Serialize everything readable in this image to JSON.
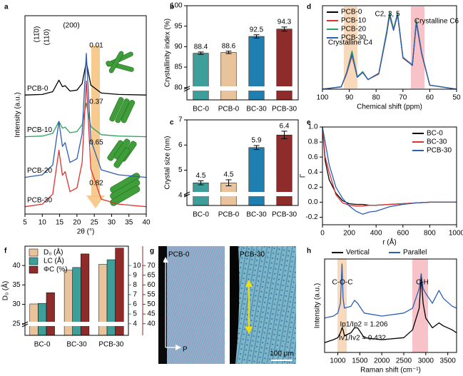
{
  "chart_data": [
    {
      "panel": "a",
      "type": "line",
      "xlabel": "2θ (°)",
      "ylabel": "Intensity (a.u.)",
      "x": [
        5,
        10,
        13,
        14.8,
        15.8,
        16.6,
        18,
        20,
        21.5,
        22.7,
        24,
        27,
        32,
        40
      ],
      "xlim": [
        5,
        40
      ],
      "xticks": [
        5,
        10,
        15,
        20,
        25,
        30,
        35,
        40
      ],
      "ylim": [
        0,
        10
      ],
      "legend": "inline",
      "series": [
        {
          "name": "PCB-0",
          "color": "#000000",
          "values": [
            6.0,
            6.03,
            6.17,
            6.75,
            6.42,
            6.47,
            6.2,
            6.25,
            6.58,
            7.67,
            6.5,
            6.1,
            6.03,
            6.0
          ]
        },
        {
          "name": "PCB-10",
          "color": "#2ca25f",
          "values": [
            3.9,
            3.93,
            4.07,
            4.67,
            4.33,
            4.38,
            4.1,
            4.16,
            4.5,
            5.6,
            4.41,
            4.0,
            3.93,
            3.9
          ]
        },
        {
          "name": "PCB-20",
          "color": "#2b5fb4",
          "values": [
            1.85,
            1.98,
            2.48,
            4.66,
            3.41,
            3.6,
            2.6,
            2.79,
            4.04,
            8.1,
            3.73,
            2.23,
            1.98,
            1.85
          ]
        },
        {
          "name": "PCB-30",
          "color": "#e03030",
          "values": [
            0.37,
            0.5,
            1.0,
            3.22,
            1.95,
            2.14,
            1.13,
            1.32,
            2.59,
            6.7,
            2.27,
            0.75,
            0.5,
            0.37
          ]
        }
      ],
      "annotations": [
        "(11̄0)",
        "(110)",
        "(200)",
        "0.01",
        "0.37",
        "0.65",
        "0.82"
      ]
    },
    {
      "panel": "b",
      "type": "bar",
      "ylabel": "Crystallinity index (%)",
      "categories": [
        "BC-0",
        "PCB-0",
        "BC-30",
        "PCB-30"
      ],
      "values": [
        88.4,
        88.6,
        92.5,
        94.3
      ],
      "errors": [
        0.3,
        0.3,
        0.4,
        0.5
      ],
      "colors": [
        "#3d9e9a",
        "#e9c39b",
        "#1f7fb0",
        "#8e2b2b"
      ],
      "ylim": [
        77,
        100
      ],
      "yticks": [
        80,
        85,
        90,
        95,
        100
      ]
    },
    {
      "panel": "c",
      "type": "bar",
      "ylabel": "Crystal size (nm)",
      "categories": [
        "BC-0",
        "PCB-0",
        "BC-30",
        "PCB-30"
      ],
      "values": [
        4.5,
        4.5,
        5.9,
        6.4
      ],
      "errors": [
        0.08,
        0.12,
        0.08,
        0.15
      ],
      "colors": [
        "#3d9e9a",
        "#e9c39b",
        "#1f7fb0",
        "#8e2b2b"
      ],
      "ylim": [
        3.6,
        7
      ],
      "yticks": [
        4,
        5,
        6,
        7
      ]
    },
    {
      "panel": "d",
      "type": "line",
      "xlabel": "Chemical shift (ppm)",
      "x": [
        100,
        93,
        91,
        89,
        87,
        85,
        83,
        79,
        76,
        75,
        73.5,
        72,
        70,
        66.5,
        65,
        63,
        60,
        50
      ],
      "xlim": [
        100,
        50
      ],
      "xticks": [
        100,
        90,
        80,
        70,
        60,
        50
      ],
      "ylim": [
        0,
        1.05
      ],
      "legend": "upper left",
      "series": [
        {
          "name": "PCB-0",
          "color": "#000000",
          "values": [
            0,
            0.03,
            0.2,
            0.45,
            0.15,
            0.22,
            0.12,
            0.2,
            0.72,
            0.95,
            0.75,
            0.95,
            0.4,
            0.3,
            0.85,
            0.45,
            0.05,
            0
          ]
        },
        {
          "name": "PCB-10",
          "color": "#e03030",
          "values": [
            0,
            0.03,
            0.19,
            0.42,
            0.15,
            0.21,
            0.12,
            0.19,
            0.7,
            0.92,
            0.74,
            0.93,
            0.39,
            0.3,
            0.83,
            0.44,
            0.05,
            0
          ]
        },
        {
          "name": "PCB-20",
          "color": "#2ca25f",
          "values": [
            0,
            0.03,
            0.21,
            0.48,
            0.16,
            0.22,
            0.12,
            0.2,
            0.74,
            0.97,
            0.76,
            0.96,
            0.4,
            0.31,
            0.87,
            0.46,
            0.05,
            0
          ]
        },
        {
          "name": "PCB-30",
          "color": "#2b5fb4",
          "values": [
            0,
            0.03,
            0.2,
            0.44,
            0.15,
            0.21,
            0.12,
            0.2,
            0.71,
            0.94,
            0.74,
            0.94,
            0.4,
            0.3,
            0.84,
            0.45,
            0.05,
            0
          ]
        }
      ],
      "annotations": [
        "Crystalline C4",
        "C2, 3, 5",
        "Crystalline C6"
      ]
    },
    {
      "panel": "e",
      "type": "line",
      "xlabel": "r (Å)",
      "ylabel": "Γ",
      "x": [
        0,
        20,
        50,
        100,
        150,
        200,
        250,
        300,
        350,
        400,
        500,
        600,
        700,
        800,
        1000
      ],
      "xlim": [
        0,
        1000
      ],
      "xticks": [
        0,
        200,
        400,
        600,
        800,
        1000
      ],
      "ylim": [
        -0.3,
        1.0
      ],
      "yticks": [
        -0.2,
        {
          "value": 0,
          "label": "0.0"
        },
        0.2,
        0.4,
        0.6,
        0.8,
        {
          "value": 1,
          "label": "1.0"
        }
      ],
      "legend": "upper right",
      "series": [
        {
          "name": "BC-0",
          "color": "#000000",
          "values": [
            1.0,
            0.55,
            0.3,
            0.12,
            0.02,
            -0.02,
            -0.03,
            -0.03,
            -0.04,
            -0.04,
            -0.03,
            -0.02,
            -0.01,
            0,
            0
          ]
        },
        {
          "name": "BC-30",
          "color": "#e03030",
          "values": [
            1.0,
            0.6,
            0.4,
            0.1,
            -0.01,
            -0.04,
            -0.05,
            -0.05,
            -0.04,
            -0.04,
            -0.03,
            -0.02,
            -0.01,
            0,
            0
          ]
        },
        {
          "name": "PCB-30",
          "color": "#2b5fb4",
          "values": [
            1.0,
            0.8,
            0.5,
            0.2,
            0.05,
            -0.05,
            -0.12,
            -0.16,
            -0.13,
            -0.12,
            -0.06,
            -0.03,
            -0.01,
            0,
            0
          ]
        }
      ]
    },
    {
      "panel": "f",
      "type": "bar",
      "ylabel": "D₀ (Å)",
      "categories": [
        "BC-0",
        "BC-30",
        "PCB-30"
      ],
      "ylim": [
        22,
        45
      ],
      "yticks": [
        25,
        30,
        35,
        40
      ],
      "y2lim": [
        2.8,
        12
      ],
      "y2ticks": [
        4,
        5,
        6,
        7,
        8,
        9,
        10
      ],
      "y3lim": [
        34,
        80
      ],
      "y3ticks": [
        40,
        45,
        50,
        55,
        60,
        65,
        70
      ],
      "legend": "upper left",
      "series": [
        {
          "name": "D₀ (Å)",
          "color": "#e9c39b",
          "values": [
            30.1,
            38.8,
            40.3
          ]
        },
        {
          "name": "LC (Å)",
          "color": "#3d9e9a",
          "axis": "y2",
          "values": [
            6.1,
            9.8,
            10.6
          ]
        },
        {
          "name": "ΦC (%)",
          "color": "#8e2b2b",
          "axis": "y3",
          "values": [
            56,
            76,
            79
          ]
        }
      ]
    },
    {
      "panel": "g",
      "type": "image",
      "labels": [
        "PCB-0",
        "PCB-30",
        "A",
        "P",
        "100 μm"
      ]
    },
    {
      "panel": "h",
      "type": "line",
      "xlabel": "Raman shift (cm⁻¹)",
      "ylabel": "Intensity (a.u.)",
      "x": [
        700,
        900,
        1000,
        1060,
        1095,
        1120,
        1150,
        1300,
        1380,
        1450,
        1600,
        2000,
        2500,
        2700,
        2850,
        2895,
        2940,
        3000,
        3150,
        3300,
        3400,
        3600,
        3700
      ],
      "xlim": [
        700,
        3700
      ],
      "xticks": [
        1000,
        1500,
        2000,
        2500,
        3000,
        3500
      ],
      "ylim": [
        0.05,
        1.0
      ],
      "legend": "top",
      "series": [
        {
          "name": "Vertical",
          "color": "#000000",
          "values": [
            0.15,
            0.18,
            0.2,
            0.25,
            0.3,
            0.28,
            0.22,
            0.25,
            0.3,
            0.3,
            0.2,
            0.18,
            0.2,
            0.28,
            0.5,
            0.82,
            0.55,
            0.4,
            0.3,
            0.35,
            0.32,
            0.28,
            0.25
          ]
        },
        {
          "name": "Parallel",
          "color": "#2b5fb4",
          "values": [
            0.4,
            0.42,
            0.45,
            0.55,
            0.95,
            0.6,
            0.5,
            0.52,
            0.58,
            0.55,
            0.45,
            0.42,
            0.45,
            0.5,
            0.7,
            0.85,
            0.7,
            0.65,
            0.55,
            0.68,
            0.6,
            0.52,
            0.5
          ]
        }
      ],
      "annotations": [
        "C-O-C",
        "C-H",
        "Ip1/Ip2 = 1.206",
        "Iv1/Iv2 = 0.432"
      ]
    }
  ]
}
